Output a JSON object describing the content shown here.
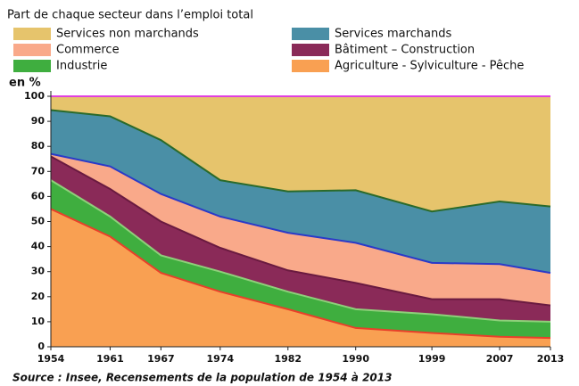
{
  "chart_data": {
    "type": "stacked_area",
    "title": "Part de chaque secteur dans l’emploi total",
    "ylabel": "en %",
    "source": "Source : Insee, Recensements de la population de 1954 à 2013",
    "x": [
      1954,
      1961,
      1967,
      1974,
      1982,
      1990,
      1999,
      2007,
      2013
    ],
    "xlim": [
      1954,
      2013
    ],
    "ylim": [
      0,
      100
    ],
    "yticks": [
      0,
      10,
      20,
      30,
      40,
      50,
      60,
      70,
      80,
      90,
      100
    ],
    "grid": false,
    "series": [
      {
        "name": "Agriculture - Sylviculture - Pêche",
        "color": "#f9a052",
        "line_color": "#e8402a",
        "values": [
          55,
          44,
          29.5,
          22,
          15,
          7.5,
          5.5,
          4,
          3.5
        ]
      },
      {
        "name": "Industrie",
        "color": "#3fae3f",
        "line_color": "#8ed07a",
        "values": [
          11.5,
          8,
          7,
          8,
          7,
          7.5,
          7.5,
          6.5,
          6.5
        ]
      },
      {
        "name": "Bâtiment – Construction",
        "color": "#8a2a58",
        "line_color": "#6a1a40",
        "values": [
          9.5,
          11,
          13.5,
          9.5,
          8.5,
          10.5,
          6,
          8.5,
          6.5
        ]
      },
      {
        "name": "Commerce",
        "color": "#f9a98a",
        "line_color": "#2a3ac8",
        "values": [
          1,
          9,
          11,
          12.5,
          15,
          16,
          14.5,
          14,
          13
        ]
      },
      {
        "name": "Services marchands",
        "color": "#4a8fa6",
        "line_color": "#2a6a2a",
        "values": [
          17.5,
          20,
          21.5,
          14.5,
          16.5,
          21,
          20.5,
          25,
          26.5
        ]
      },
      {
        "name": "Services non marchands",
        "color": "#e6c46c",
        "line_color": "#e040e0",
        "values": [
          5.5,
          8,
          17.5,
          33.5,
          38,
          37.5,
          46,
          42,
          44
        ]
      }
    ]
  }
}
